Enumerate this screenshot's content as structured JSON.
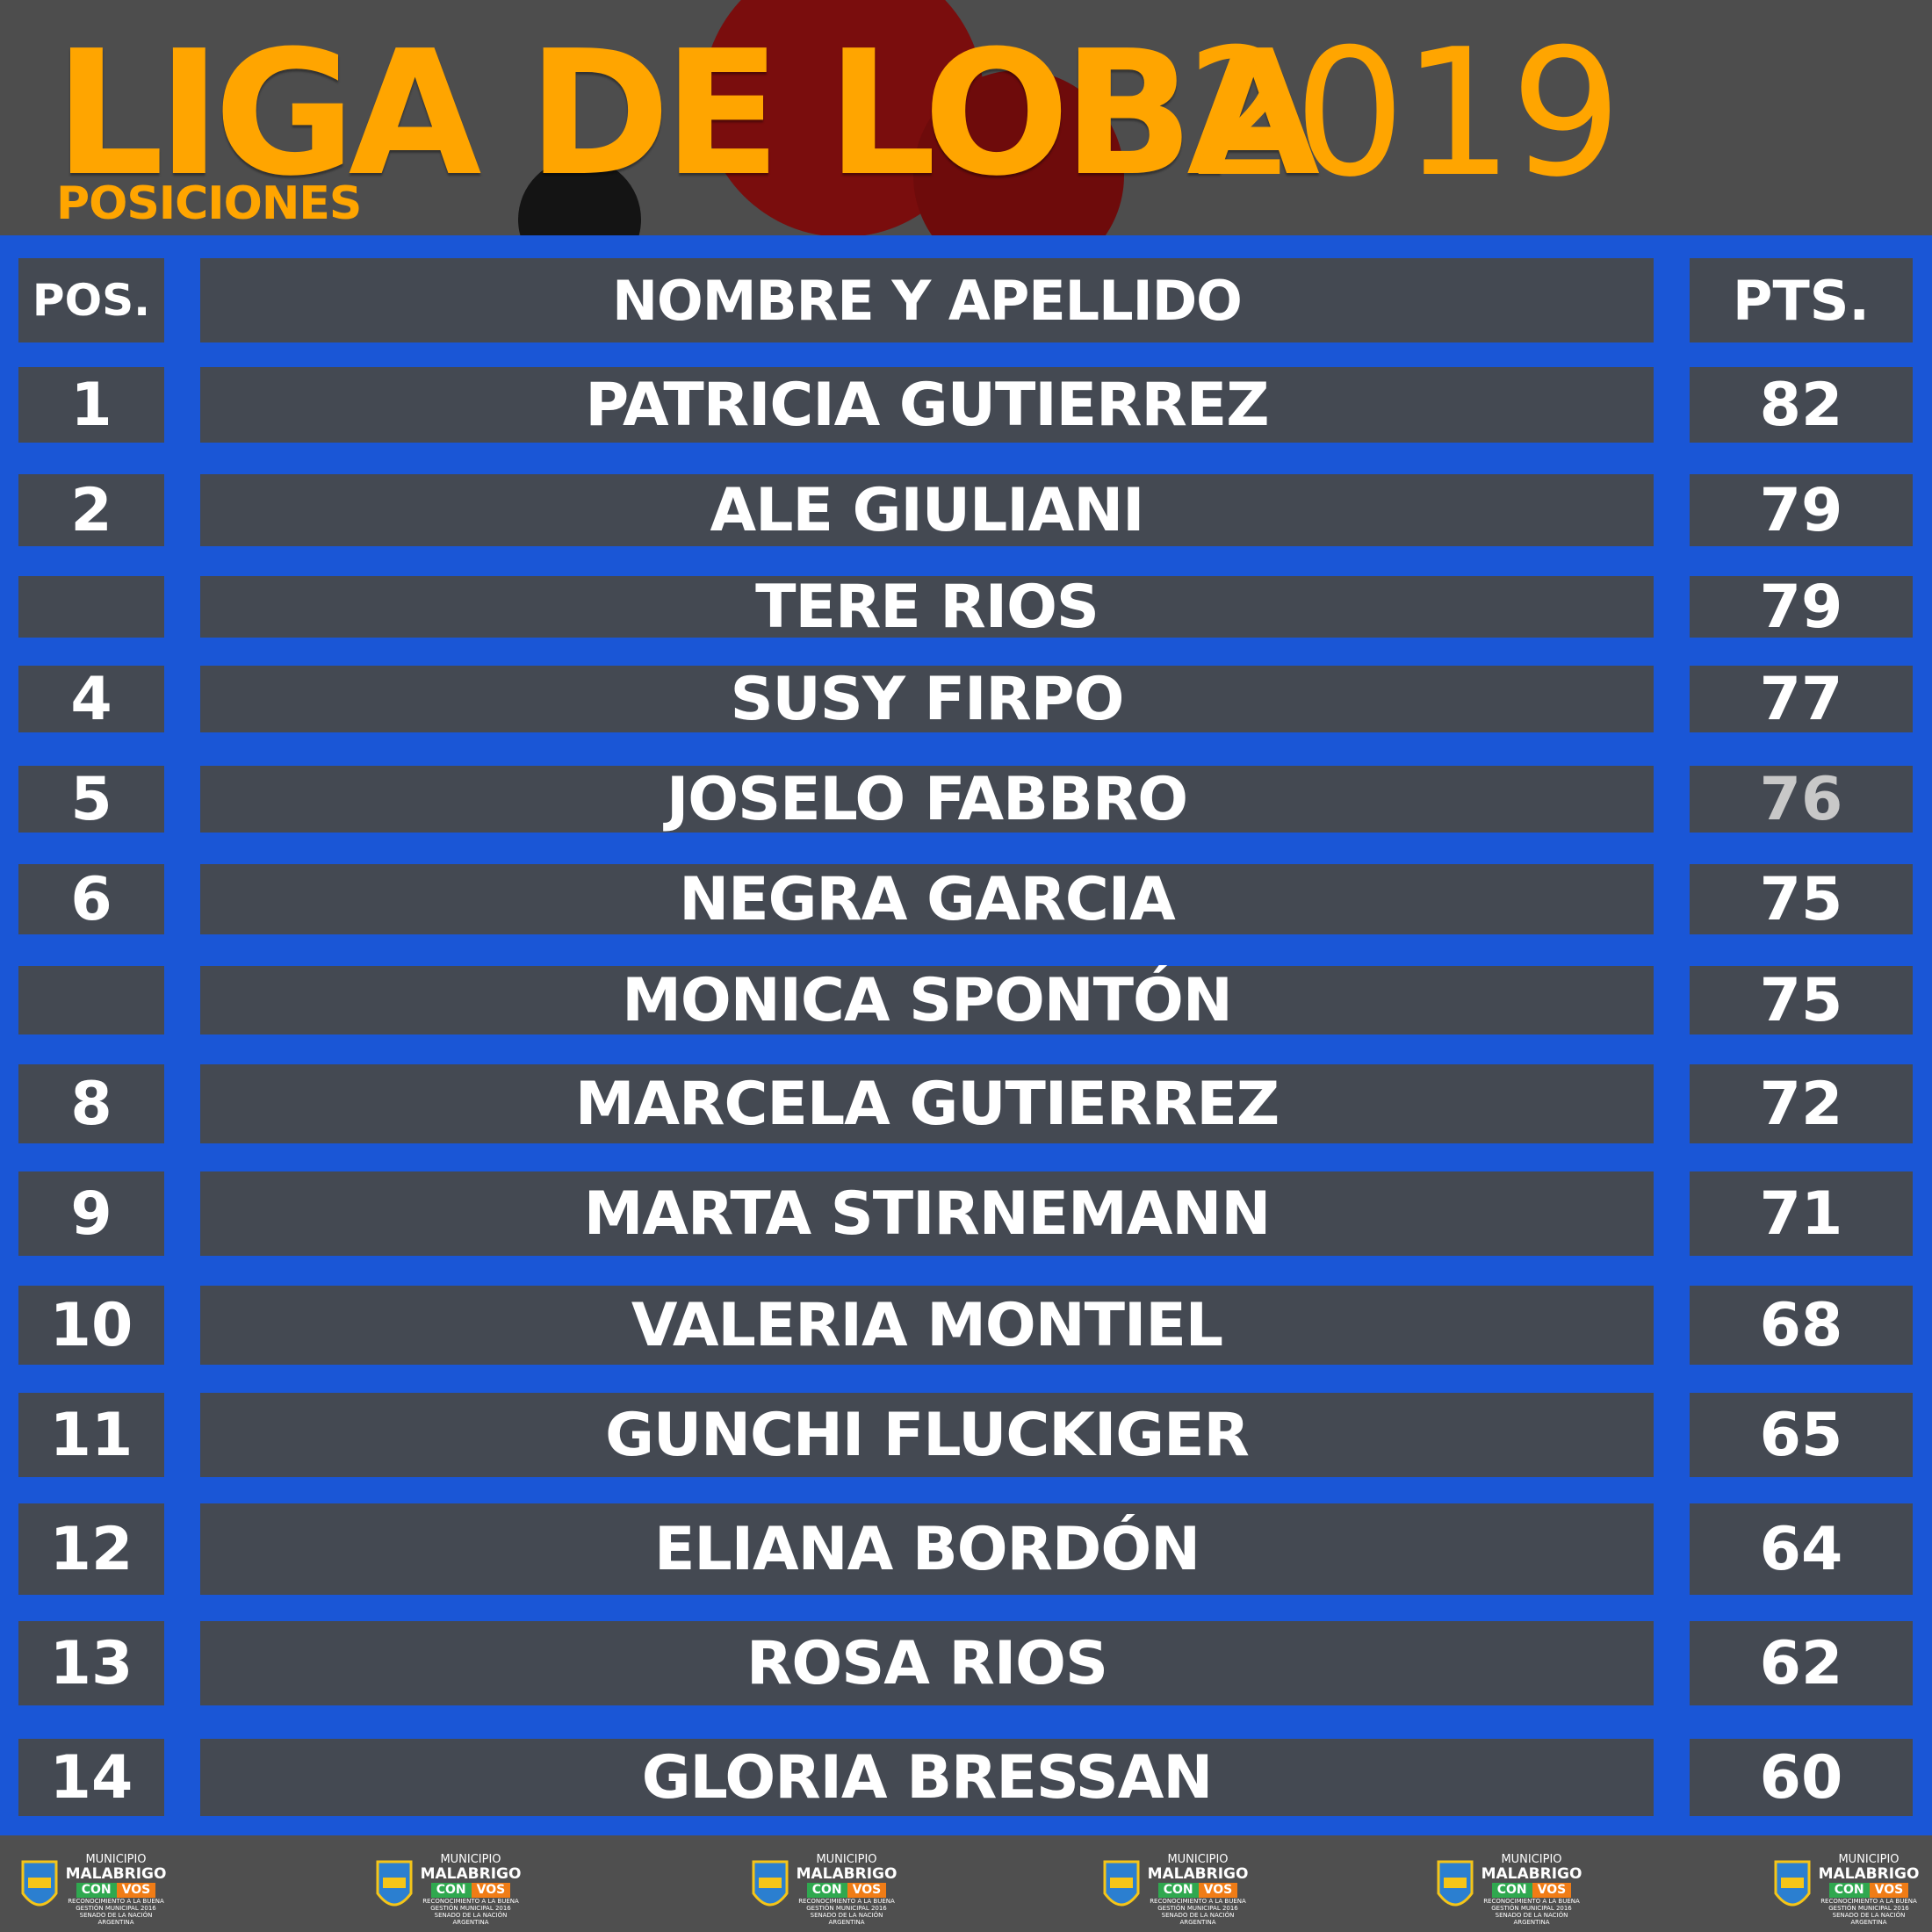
{
  "header": {
    "title_main": "LIGA DE LOBA",
    "title_year": "2019",
    "subtitle": "POSICIONES"
  },
  "table": {
    "columns": {
      "pos": "POS.",
      "name": "NOMBRE Y APELLIDO",
      "pts": "PTS."
    },
    "rows": [
      {
        "pos": "1",
        "name": "PATRICIA GUTIERREZ",
        "pts": "82"
      },
      {
        "pos": "2",
        "name": "ALE GIULIANI",
        "pts": "79"
      },
      {
        "pos": "",
        "name": "TERE RIOS",
        "pts": "79"
      },
      {
        "pos": "4",
        "name": "SUSY FIRPO",
        "pts": "77"
      },
      {
        "pos": "5",
        "name": "JOSELO FABBRO",
        "pts": "76"
      },
      {
        "pos": "6",
        "name": "NEGRA GARCIA",
        "pts": "75"
      },
      {
        "pos": "",
        "name": "MONICA SPONTÓN",
        "pts": "75"
      },
      {
        "pos": "8",
        "name": "MARCELA GUTIERREZ",
        "pts": "72"
      },
      {
        "pos": "9",
        "name": "MARTA STIRNEMANN",
        "pts": "71"
      },
      {
        "pos": "10",
        "name": "VALERIA MONTIEL",
        "pts": "68"
      },
      {
        "pos": "11",
        "name": "GUNCHI FLUCKIGER",
        "pts": "65"
      },
      {
        "pos": "12",
        "name": "ELIANA BORDÓN",
        "pts": "64"
      },
      {
        "pos": "13",
        "name": "ROSA RIOS",
        "pts": "62"
      },
      {
        "pos": "14",
        "name": "GLORIA BRESSAN",
        "pts": "60"
      }
    ]
  },
  "footer": {
    "logo": {
      "line1": "MUNICIPIO",
      "line2": "MALABRIGO",
      "con": "CON",
      "vos": "VOS",
      "line3": "RECONOCIMIENTO A LA BUENA",
      "line4": "GESTIÓN MUNICIPAL 2016",
      "line5": "SENADO DE LA NACIÓN ARGENTINA"
    }
  },
  "colors": {
    "accent": "#ffa500",
    "frame": "#1a56d6",
    "cell": "#484848",
    "con": "#2fa84f",
    "vos": "#f07c16"
  }
}
